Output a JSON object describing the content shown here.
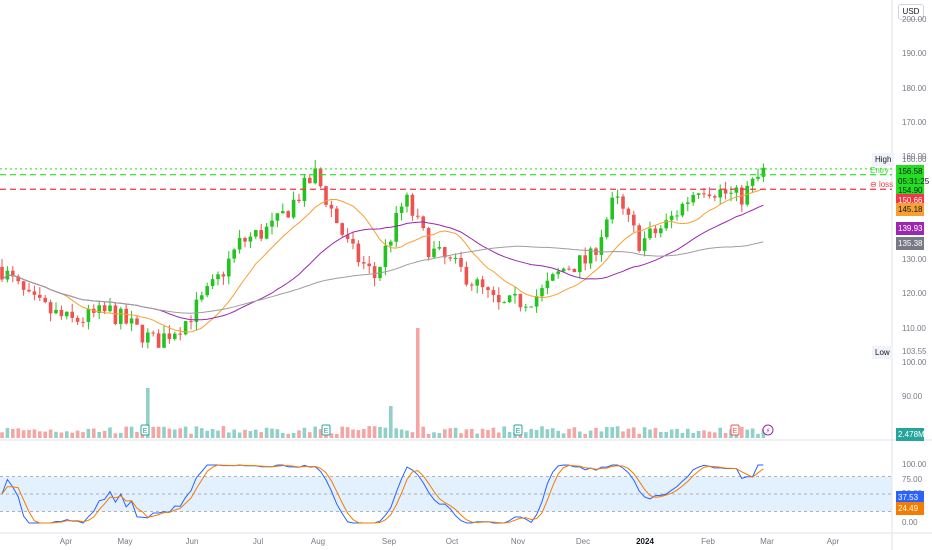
{
  "currency": "USD",
  "price_ticks": [
    "200.00",
    "190.00",
    "180.00",
    "170.00",
    "160.00",
    "130.00",
    "120.00",
    "110.00",
    "100.00",
    "90.00"
  ],
  "osc_ticks": [
    "100.00",
    "75.00",
    "50.00",
    "25.00",
    "0.00"
  ],
  "time_axis": [
    "Apr",
    "May",
    "Jun",
    "Jul",
    "Aug",
    "Sep",
    "Oct",
    "Nov",
    "Dec",
    "2024",
    "Feb",
    "Mar",
    "Apr"
  ],
  "high_label": {
    "label": "High",
    "value": "160.00"
  },
  "low_label": {
    "label": "Low",
    "value": "103.55"
  },
  "entry_label": "Entry",
  "loss_label": "loss",
  "price_badges": {
    "last_price": "156.58",
    "countdown": "05:31:25",
    "entry": "154.90",
    "stop_loss": "150.66",
    "ma_fast": "145.18",
    "ma_mid": "139.93",
    "ma_slow": "135.38",
    "volume": "2.478M",
    "stoch_k": "37.53",
    "stoch_d": "24.49"
  },
  "earnings_marker": "E",
  "colors": {
    "up": "#26a69a",
    "up_candle": "#22c41e",
    "down": "#ef5350",
    "entry_line": "#22e01f",
    "loss_line": "#f23645",
    "ma_fast": "#f7a030",
    "ma_mid": "#9c27b0",
    "ma_slow": "#9e9e9e",
    "stoch_k": "#2962ff",
    "stoch_d": "#f57c00"
  },
  "chart_data": {
    "type": "candlestick",
    "x_labels": [
      "Apr",
      "May",
      "Jun",
      "Jul",
      "Aug",
      "Sep",
      "Oct",
      "Nov",
      "Dec",
      "2024",
      "Feb",
      "Mar",
      "Apr"
    ],
    "close_path": [
      [
        "Mar",
        128
      ],
      [
        "Apr",
        118
      ],
      [
        "Apr",
        112
      ],
      [
        "May",
        115
      ],
      [
        "May",
        106
      ],
      [
        "Jun",
        112
      ],
      [
        "Jun",
        123
      ],
      [
        "Jul",
        135
      ],
      [
        "Aug",
        155
      ],
      [
        "Aug",
        133
      ],
      [
        "Sep",
        125
      ],
      [
        "Sep",
        148
      ],
      [
        "Oct",
        133
      ],
      [
        "Oct",
        126
      ],
      [
        "Nov",
        116
      ],
      [
        "Nov",
        120
      ],
      [
        "Dec",
        128
      ],
      [
        "Dec",
        148
      ],
      [
        "2024",
        135
      ],
      [
        "2024",
        140
      ],
      [
        "Feb",
        152
      ],
      [
        "Feb",
        157
      ]
    ],
    "high": 160.0,
    "low": 103.55,
    "last": 156.58,
    "entry": 154.9,
    "stop_loss": 150.66,
    "moving_averages": {
      "fast": 145.18,
      "mid": 139.93,
      "slow": 135.38
    },
    "y_range": [
      100,
      200
    ],
    "oscillator": {
      "type": "stochastic",
      "k": 37.53,
      "d": 24.49,
      "band": [
        20,
        80
      ],
      "range": [
        0,
        100
      ]
    }
  }
}
